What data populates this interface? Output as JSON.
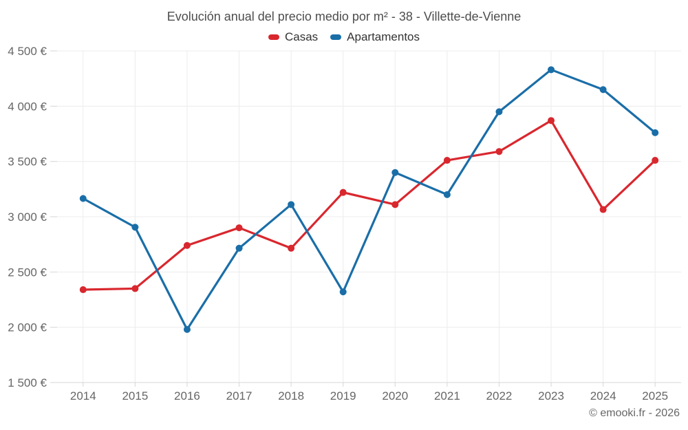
{
  "page": {
    "footer": "© emooki.fr - 2026"
  },
  "legend": {
    "position": "top"
  },
  "chart_data": {
    "type": "line",
    "title": "Evolución anual del precio medio por m² - 38 - Villette-de-Vienne",
    "categories": [
      "2014",
      "2015",
      "2016",
      "2017",
      "2018",
      "2019",
      "2020",
      "2021",
      "2022",
      "2023",
      "2024",
      "2025"
    ],
    "series": [
      {
        "name": "Casas",
        "color": "#d9272e",
        "values": [
          2340,
          2350,
          2740,
          2900,
          2715,
          3220,
          3110,
          3510,
          3590,
          3870,
          3065,
          3510
        ]
      },
      {
        "name": "Apartamentos",
        "color": "#1a6ea8",
        "values": [
          3165,
          2905,
          1980,
          2715,
          3110,
          2320,
          3400,
          3200,
          3950,
          4330,
          4150,
          3760
        ]
      }
    ],
    "xlabel": "",
    "ylabel": "",
    "ylim": [
      1500,
      4500
    ],
    "grid": true,
    "legend_position": "top",
    "y_ticks": [
      {
        "value": 1500,
        "label": "1 500 €"
      },
      {
        "value": 2000,
        "label": "2 000 €"
      },
      {
        "value": 2500,
        "label": "2 500 €"
      },
      {
        "value": 3000,
        "label": "3 000 €"
      },
      {
        "value": 3500,
        "label": "3 500 €"
      },
      {
        "value": 4000,
        "label": "4 000 €"
      },
      {
        "value": 4500,
        "label": "4 500 €"
      }
    ],
    "colors": {
      "grid_line": "#ececec",
      "axis_line": "#d6d6d6",
      "tick_label": "#666666",
      "title_text": "#4d4d4d"
    }
  }
}
